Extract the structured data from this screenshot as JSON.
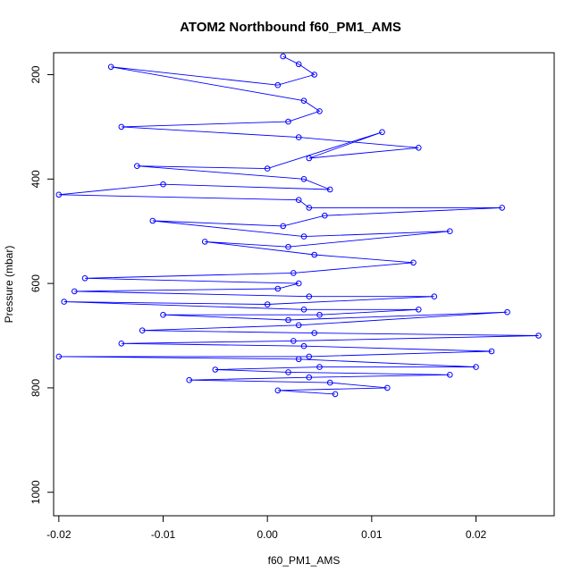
{
  "chart_data": {
    "type": "line",
    "title": "ATOM2 Northbound f60_PM1_AMS",
    "xlabel": "f60_PM1_AMS",
    "ylabel": "Pressure (mbar)",
    "xlim": [
      -0.0205,
      0.0275
    ],
    "ylim": [
      1045,
      158
    ],
    "y_reversed": true,
    "x_ticks": [
      -0.02,
      -0.01,
      0.0,
      0.01,
      0.02
    ],
    "x_tick_labels": [
      "-0.02",
      "-0.01",
      "0.00",
      "0.01",
      "0.02"
    ],
    "y_ticks": [
      200,
      400,
      600,
      800,
      1000
    ],
    "y_tick_labels": [
      "200",
      "400",
      "600",
      "800",
      "1000"
    ],
    "grid": false,
    "legend": "none",
    "series_color": "#0000ff",
    "marker": "open-circle",
    "series": [
      {
        "x": [
          0.0015,
          0.003,
          0.0045,
          0.001,
          -0.015,
          0.0035,
          0.005,
          0.002,
          -0.014,
          0.003,
          0.0145,
          0.004,
          0.011,
          0.0,
          -0.0125,
          0.0035,
          0.006,
          -0.01,
          -0.02,
          0.003,
          0.004,
          0.0225,
          0.0055,
          0.0015,
          -0.011,
          0.0035,
          0.0175,
          0.002,
          -0.006,
          0.0045,
          0.014,
          0.0025,
          -0.0175,
          0.003,
          0.001,
          -0.0185,
          0.004,
          0.016,
          0.0,
          -0.0195,
          0.0035,
          0.0145,
          0.005,
          -0.01,
          0.002,
          0.023,
          0.003,
          -0.012,
          0.0045,
          0.026,
          0.0025,
          -0.014,
          0.0035,
          0.0215,
          0.004,
          -0.02,
          0.003,
          0.02,
          0.005,
          -0.005,
          0.002,
          0.0175,
          0.004,
          -0.0075,
          0.006,
          0.0115,
          0.001,
          0.0065
        ],
        "y": [
          165,
          180,
          200,
          220,
          185,
          250,
          270,
          290,
          300,
          320,
          340,
          360,
          310,
          380,
          375,
          400,
          420,
          410,
          430,
          440,
          455,
          455,
          470,
          490,
          480,
          510,
          500,
          530,
          520,
          545,
          560,
          580,
          590,
          600,
          610,
          615,
          625,
          625,
          640,
          635,
          650,
          650,
          660,
          660,
          670,
          655,
          680,
          690,
          695,
          700,
          710,
          715,
          720,
          730,
          740,
          740,
          745,
          760,
          760,
          765,
          770,
          775,
          780,
          785,
          790,
          800,
          805,
          812
        ]
      }
    ]
  }
}
